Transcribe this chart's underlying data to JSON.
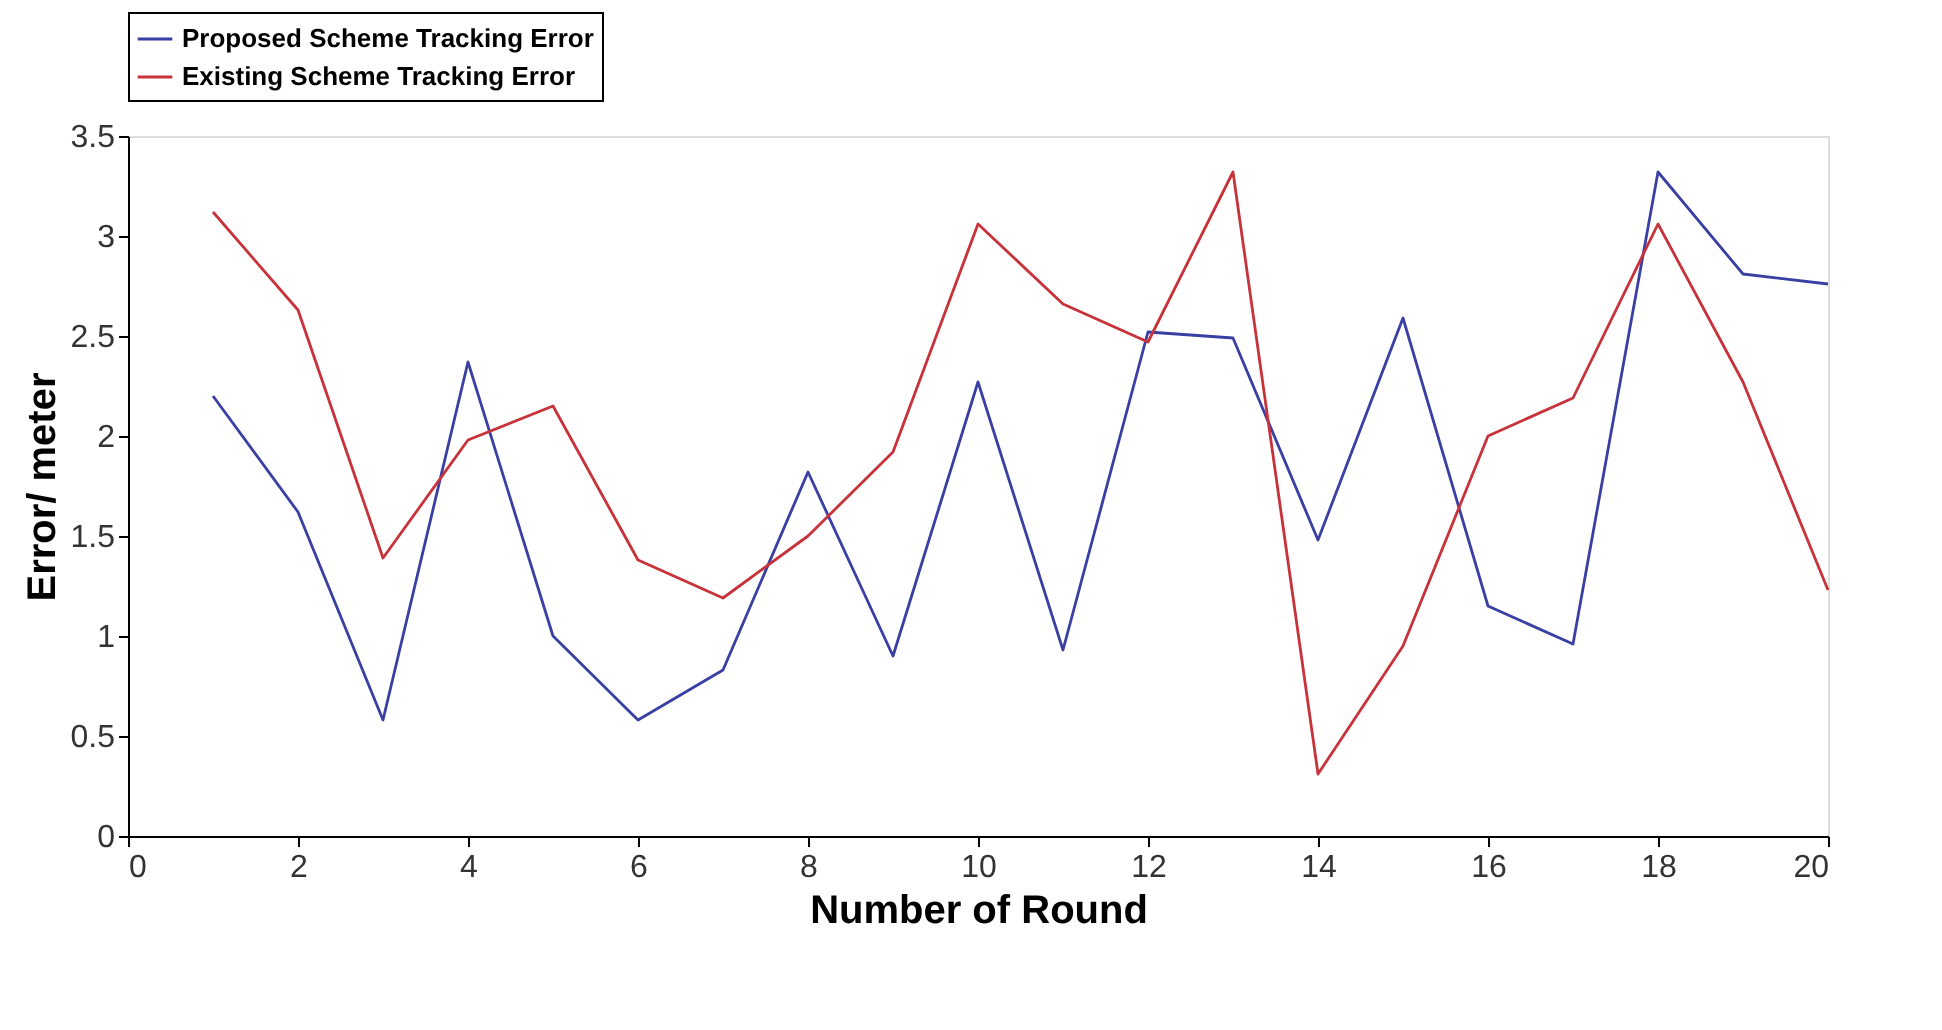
{
  "chart_data": {
    "type": "line",
    "xlabel": "Number of Round",
    "ylabel": "Error/ meter",
    "x": [
      1,
      2,
      3,
      4,
      5,
      6,
      7,
      8,
      9,
      10,
      11,
      12,
      13,
      14,
      15,
      16,
      17,
      18,
      19,
      20
    ],
    "series": [
      {
        "name": "Proposed Scheme Tracking Error",
        "color": "#3a3fa3",
        "values": [
          2.2,
          1.62,
          0.58,
          2.37,
          1.0,
          0.58,
          0.83,
          1.82,
          0.9,
          2.27,
          0.93,
          2.52,
          2.49,
          1.48,
          2.59,
          1.15,
          0.96,
          3.32,
          2.81,
          2.76
        ]
      },
      {
        "name": "Existing Scheme Tracking Error",
        "color": "#c8323a",
        "values": [
          3.12,
          2.63,
          1.39,
          1.98,
          2.15,
          1.38,
          1.19,
          1.5,
          1.92,
          3.06,
          2.66,
          2.47,
          3.32,
          0.31,
          0.95,
          2.0,
          2.19,
          3.06,
          2.27,
          1.23
        ]
      }
    ],
    "xlim": [
      0,
      20
    ],
    "xticks": [
      0,
      2,
      4,
      6,
      8,
      10,
      12,
      14,
      16,
      18,
      20
    ],
    "ylim": [
      0,
      3.5
    ],
    "yticks": [
      0,
      0.5,
      1,
      1.5,
      2,
      2.5,
      3,
      3.5
    ],
    "grid": false,
    "legend": "top",
    "marker": "none",
    "line_style": "solid"
  }
}
